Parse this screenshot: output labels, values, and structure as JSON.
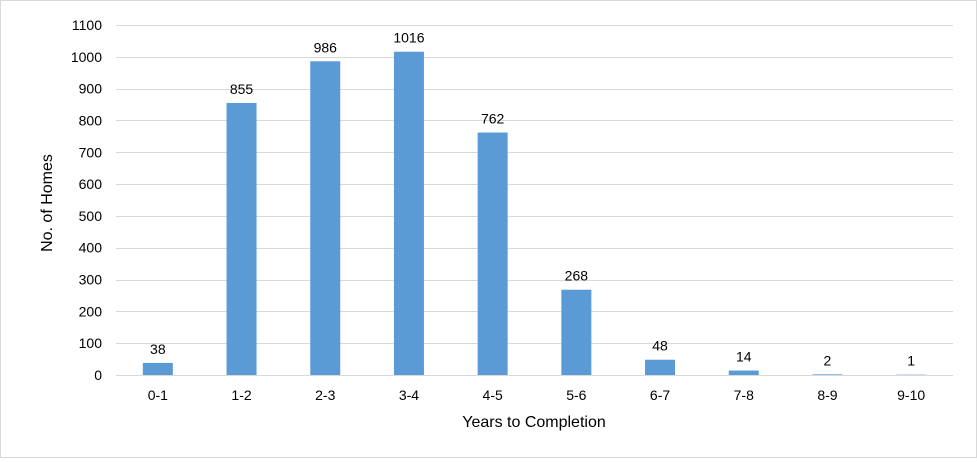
{
  "chart_data": {
    "type": "bar",
    "title": "",
    "xlabel": "Years to Completion",
    "ylabel": "No. of Homes",
    "categories": [
      "0-1",
      "1-2",
      "2-3",
      "3-4",
      "4-5",
      "5-6",
      "6-7",
      "7-8",
      "8-9",
      "9-10"
    ],
    "values": [
      38,
      855,
      986,
      1016,
      762,
      268,
      48,
      14,
      2,
      1
    ],
    "ylim": [
      0,
      1100
    ],
    "yticks": [
      0,
      100,
      200,
      300,
      400,
      500,
      600,
      700,
      800,
      900,
      1000,
      1100
    ],
    "grid": true,
    "legend": "none",
    "data_labels": true,
    "bar_color": "#5b9bd5",
    "grid_color": "#d9d9d9",
    "axis_color": "#d9d9d9"
  }
}
